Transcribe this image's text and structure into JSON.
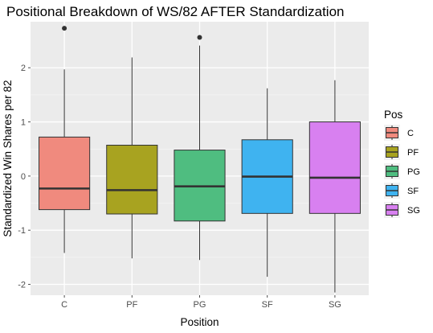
{
  "chart_data": {
    "type": "boxplot",
    "title": "Positional Breakdown of WS/82 AFTER Standardization",
    "xlabel": "Position",
    "ylabel": "Standardized Win Shares per 82",
    "ylim": [
      -2.2,
      2.85
    ],
    "yticks": [
      -2,
      -1,
      0,
      1,
      2
    ],
    "grid": true,
    "background": "#ebebeb",
    "legend_title": "Pos",
    "legend_position": "right",
    "categories": [
      "C",
      "PF",
      "PG",
      "SF",
      "SG"
    ],
    "series": [
      {
        "name": "C",
        "color": "#f08a7e",
        "whisker_low": -1.42,
        "q1": -0.62,
        "median": -0.23,
        "q3": 0.72,
        "whisker_high": 1.97,
        "outliers": [
          2.73
        ]
      },
      {
        "name": "PF",
        "color": "#a8a320",
        "whisker_low": -1.52,
        "q1": -0.7,
        "median": -0.26,
        "q3": 0.57,
        "whisker_high": 2.19,
        "outliers": []
      },
      {
        "name": "PG",
        "color": "#4fbd80",
        "whisker_low": -1.55,
        "q1": -0.83,
        "median": -0.19,
        "q3": 0.48,
        "whisker_high": 2.41,
        "outliers": [
          2.56
        ]
      },
      {
        "name": "SF",
        "color": "#3fb3f0",
        "whisker_low": -1.86,
        "q1": -0.69,
        "median": -0.01,
        "q3": 0.67,
        "whisker_high": 1.62,
        "outliers": []
      },
      {
        "name": "SG",
        "color": "#d880f0",
        "whisker_low": -2.15,
        "q1": -0.69,
        "median": -0.03,
        "q3": 1.0,
        "whisker_high": 1.77,
        "outliers": []
      }
    ]
  }
}
